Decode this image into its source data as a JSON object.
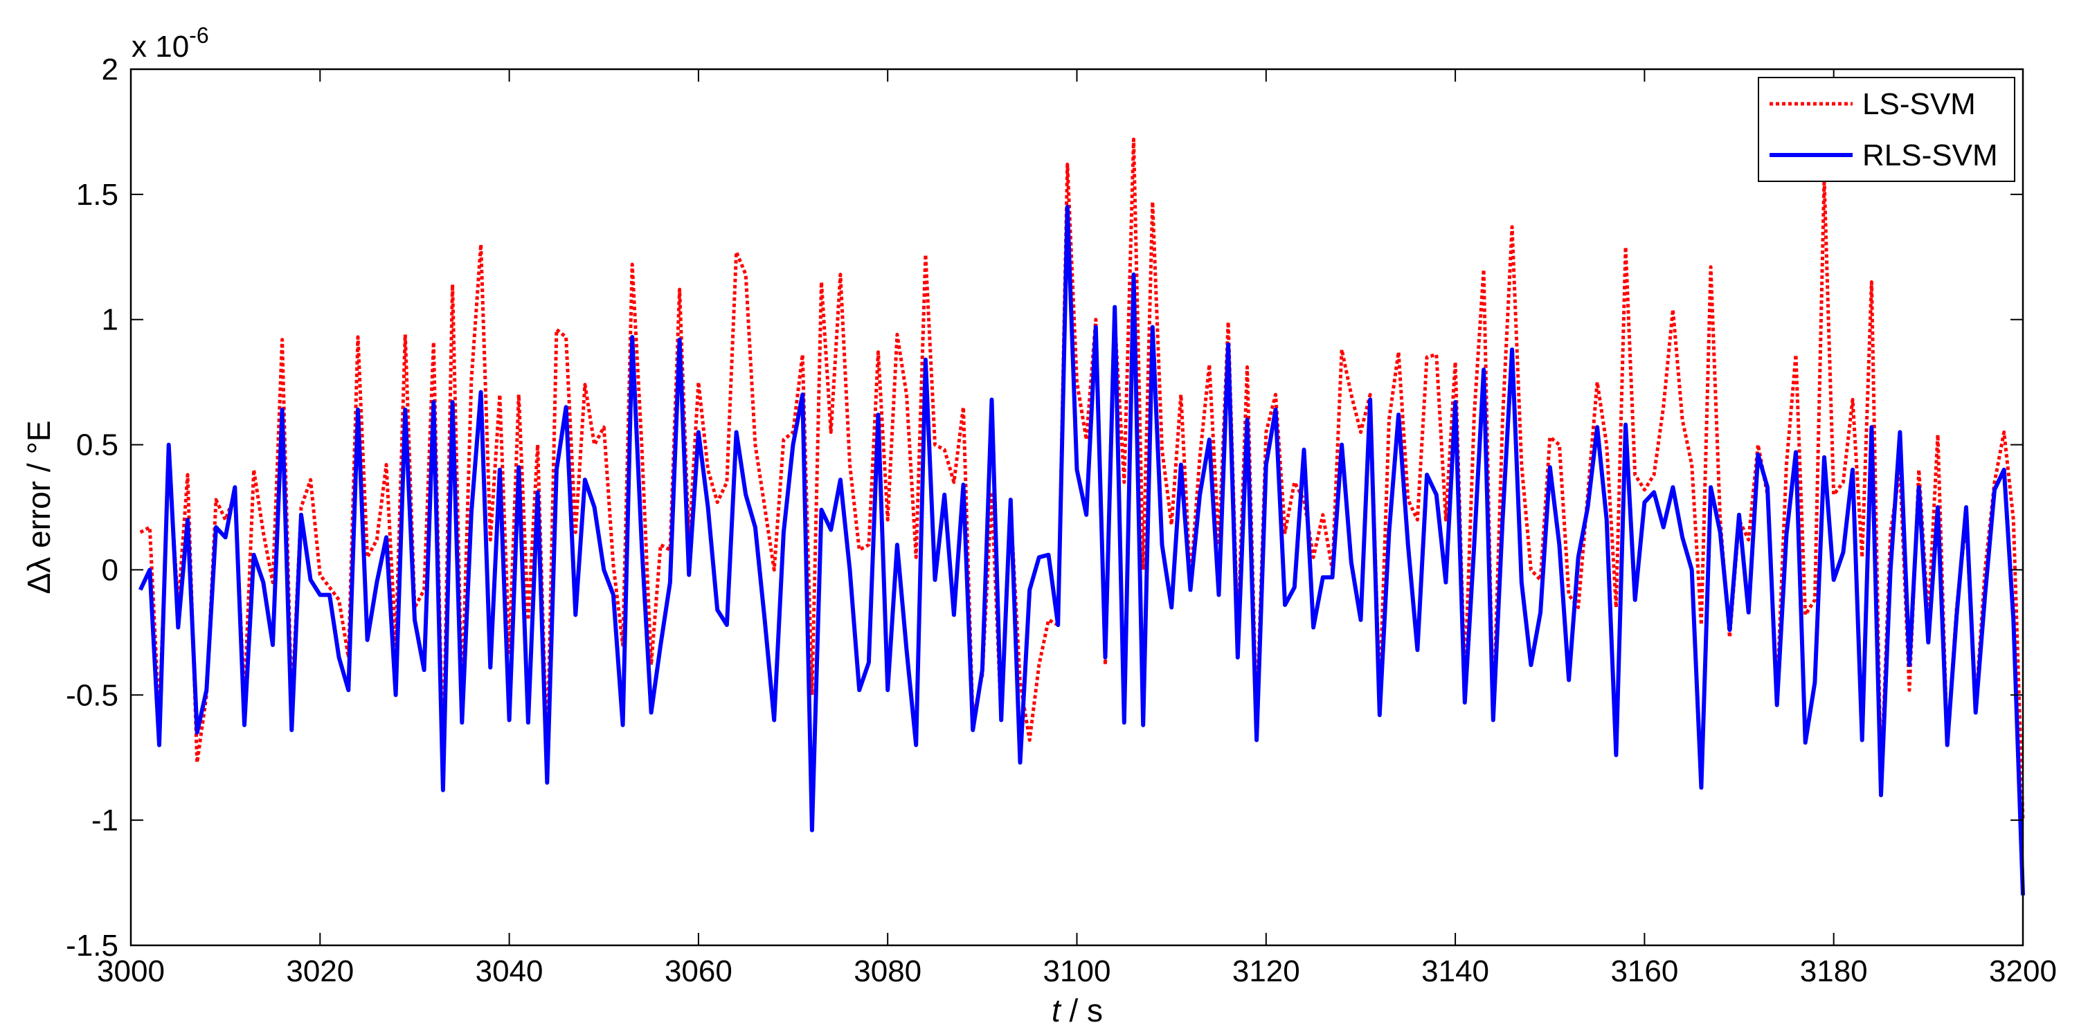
{
  "chart_data": {
    "type": "line",
    "xlabel_italic": "t",
    "xlabel_rest": " / s",
    "ylabel": "Δλ error / °E",
    "y_scale_label": "x 10",
    "y_scale_exponent": "-6",
    "xlim": [
      3000,
      3200
    ],
    "ylim": [
      -1.5,
      2
    ],
    "xticks": [
      3000,
      3020,
      3040,
      3060,
      3080,
      3100,
      3120,
      3140,
      3160,
      3180,
      3200
    ],
    "xtick_labels": [
      "3000",
      "3020",
      "3040",
      "3060",
      "3080",
      "3100",
      "3120",
      "3140",
      "3160",
      "3180",
      "3200"
    ],
    "yticks": [
      -1.5,
      -1,
      -0.5,
      0,
      0.5,
      1,
      1.5,
      2
    ],
    "ytick_labels": [
      "-1.5",
      "-1",
      "-0.5",
      "0",
      "0.5",
      "1",
      "1.5",
      "2"
    ],
    "grid": false,
    "legend_position": "top-right",
    "x": [
      3001,
      3002,
      3003,
      3004,
      3005,
      3006,
      3007,
      3008,
      3009,
      3010,
      3011,
      3012,
      3013,
      3014,
      3015,
      3016,
      3017,
      3018,
      3019,
      3020,
      3021,
      3022,
      3023,
      3024,
      3025,
      3026,
      3027,
      3028,
      3029,
      3030,
      3031,
      3032,
      3033,
      3034,
      3035,
      3036,
      3037,
      3038,
      3039,
      3040,
      3041,
      3042,
      3043,
      3044,
      3045,
      3046,
      3047,
      3048,
      3049,
      3050,
      3051,
      3052,
      3053,
      3054,
      3055,
      3056,
      3057,
      3058,
      3059,
      3060,
      3061,
      3062,
      3063,
      3064,
      3065,
      3066,
      3067,
      3068,
      3069,
      3070,
      3071,
      3072,
      3073,
      3074,
      3075,
      3076,
      3077,
      3078,
      3079,
      3080,
      3081,
      3082,
      3083,
      3084,
      3085,
      3086,
      3087,
      3088,
      3089,
      3090,
      3091,
      3092,
      3093,
      3094,
      3095,
      3096,
      3097,
      3098,
      3099,
      3100,
      3101,
      3102,
      3103,
      3104,
      3105,
      3106,
      3107,
      3108,
      3109,
      3110,
      3111,
      3112,
      3113,
      3114,
      3115,
      3116,
      3117,
      3118,
      3119,
      3120,
      3121,
      3122,
      3123,
      3124,
      3125,
      3126,
      3127,
      3128,
      3129,
      3130,
      3131,
      3132,
      3133,
      3134,
      3135,
      3136,
      3137,
      3138,
      3139,
      3140,
      3141,
      3142,
      3143,
      3144,
      3145,
      3146,
      3147,
      3148,
      3149,
      3150,
      3151,
      3152,
      3153,
      3154,
      3155,
      3156,
      3157,
      3158,
      3159,
      3160,
      3161,
      3162,
      3163,
      3164,
      3165,
      3166,
      3167,
      3168,
      3169,
      3170,
      3171,
      3172,
      3173,
      3174,
      3175,
      3176,
      3177,
      3178,
      3179,
      3180,
      3181,
      3182,
      3183,
      3184,
      3185,
      3186,
      3187,
      3188,
      3189,
      3190,
      3191,
      3192,
      3193,
      3194,
      3195,
      3196,
      3197,
      3198,
      3199,
      3200
    ],
    "series": [
      {
        "name": "LS-SVM",
        "color": "#ff0000",
        "style": "dotted",
        "values": [
          0.15,
          0.17,
          -0.6,
          0.45,
          -0.15,
          0.38,
          -0.77,
          -0.5,
          0.28,
          0.2,
          0.3,
          -0.52,
          0.4,
          0.15,
          -0.05,
          0.92,
          -0.55,
          0.25,
          0.36,
          -0.02,
          -0.07,
          -0.12,
          -0.35,
          0.93,
          0.05,
          0.12,
          0.42,
          -0.3,
          0.94,
          -0.15,
          -0.08,
          0.91,
          -0.78,
          1.14,
          -0.52,
          0.76,
          1.3,
          0.12,
          0.7,
          -0.33,
          0.7,
          -0.2,
          0.5,
          -0.75,
          0.96,
          0.93,
          0.15,
          0.74,
          0.5,
          0.57,
          0.02,
          -0.3,
          1.22,
          0.5,
          -0.38,
          0.1,
          0.08,
          1.12,
          0.1,
          0.75,
          0.4,
          0.27,
          0.35,
          1.27,
          1.18,
          0.5,
          0.25,
          0.0,
          0.52,
          0.55,
          0.86,
          -0.5,
          1.15,
          0.55,
          1.18,
          0.42,
          0.08,
          0.1,
          0.87,
          0.2,
          0.94,
          0.7,
          0.05,
          1.26,
          0.5,
          0.48,
          0.35,
          0.65,
          -0.6,
          -0.42,
          0.3,
          -0.6,
          0.25,
          -0.45,
          -0.68,
          -0.38,
          -0.2,
          -0.22,
          1.62,
          0.75,
          0.52,
          1.0,
          -0.38,
          1.0,
          0.35,
          1.72,
          0.0,
          1.47,
          0.48,
          0.18,
          0.7,
          -0.05,
          0.45,
          0.82,
          0.1,
          0.99,
          -0.25,
          0.81,
          -0.6,
          0.55,
          0.7,
          0.15,
          0.35,
          0.28,
          0.05,
          0.22,
          0.0,
          0.88,
          0.7,
          0.55,
          0.7,
          -0.5,
          0.6,
          0.87,
          0.28,
          0.2,
          0.85,
          0.86,
          0.2,
          0.83,
          -0.45,
          0.62,
          1.2,
          -0.6,
          0.6,
          1.37,
          0.42,
          0.0,
          -0.04,
          0.53,
          0.5,
          -0.1,
          -0.15,
          0.3,
          0.75,
          0.5,
          -0.15,
          1.29,
          0.38,
          0.32,
          0.38,
          0.65,
          1.04,
          0.6,
          0.42,
          -0.22,
          1.21,
          0.2,
          -0.27,
          0.2,
          0.12,
          0.5,
          0.3,
          -0.5,
          0.42,
          0.86,
          -0.18,
          -0.12,
          1.56,
          0.3,
          0.35,
          0.68,
          0.05,
          1.15,
          -0.85,
          0.15,
          0.4,
          -0.48,
          0.4,
          -0.2,
          0.54,
          -0.7,
          -0.15,
          0.2,
          -0.55,
          0.0,
          0.35,
          0.55,
          0.2,
          -1.0
        ]
      },
      {
        "name": "RLS-SVM",
        "color": "#0000ff",
        "style": "solid",
        "values": [
          -0.08,
          0.0,
          -0.7,
          0.5,
          -0.23,
          0.2,
          -0.65,
          -0.48,
          0.17,
          0.13,
          0.33,
          -0.62,
          0.06,
          -0.05,
          -0.3,
          0.64,
          -0.64,
          0.22,
          -0.04,
          -0.1,
          -0.1,
          -0.35,
          -0.48,
          0.64,
          -0.28,
          -0.05,
          0.13,
          -0.5,
          0.64,
          -0.2,
          -0.4,
          0.67,
          -0.88,
          0.67,
          -0.61,
          0.23,
          0.71,
          -0.39,
          0.4,
          -0.6,
          0.41,
          -0.61,
          0.31,
          -0.85,
          0.4,
          0.65,
          -0.18,
          0.36,
          0.25,
          0.0,
          -0.1,
          -0.62,
          0.93,
          0.1,
          -0.57,
          -0.3,
          -0.05,
          0.92,
          -0.02,
          0.55,
          0.25,
          -0.16,
          -0.22,
          0.55,
          0.3,
          0.17,
          -0.2,
          -0.6,
          0.15,
          0.5,
          0.7,
          -1.04,
          0.24,
          0.16,
          0.36,
          0.0,
          -0.48,
          -0.37,
          0.62,
          -0.48,
          0.1,
          -0.32,
          -0.7,
          0.84,
          -0.04,
          0.3,
          -0.18,
          0.34,
          -0.64,
          -0.4,
          0.68,
          -0.6,
          0.28,
          -0.77,
          -0.08,
          0.05,
          0.06,
          -0.22,
          1.45,
          0.4,
          0.22,
          0.97,
          -0.35,
          1.05,
          -0.61,
          1.18,
          -0.62,
          0.97,
          0.1,
          -0.15,
          0.42,
          -0.08,
          0.3,
          0.52,
          -0.1,
          0.9,
          -0.35,
          0.6,
          -0.68,
          0.42,
          0.64,
          -0.14,
          -0.07,
          0.48,
          -0.23,
          -0.03,
          -0.03,
          0.5,
          0.03,
          -0.2,
          0.68,
          -0.58,
          0.15,
          0.62,
          0.1,
          -0.32,
          0.38,
          0.3,
          -0.05,
          0.67,
          -0.53,
          0.1,
          0.8,
          -0.6,
          0.2,
          0.88,
          -0.05,
          -0.38,
          -0.17,
          0.41,
          0.1,
          -0.44,
          0.05,
          0.25,
          0.57,
          0.2,
          -0.74,
          0.58,
          -0.12,
          0.27,
          0.31,
          0.17,
          0.33,
          0.13,
          0.0,
          -0.87,
          0.33,
          0.15,
          -0.24,
          0.22,
          -0.17,
          0.46,
          0.33,
          -0.54,
          0.14,
          0.47,
          -0.69,
          -0.45,
          0.45,
          -0.04,
          0.07,
          0.4,
          -0.68,
          0.57,
          -0.9,
          0.0,
          0.55,
          -0.38,
          0.33,
          -0.29,
          0.25,
          -0.7,
          -0.18,
          0.25,
          -0.57,
          -0.1,
          0.32,
          0.4,
          -0.2,
          -1.3
        ]
      }
    ]
  }
}
